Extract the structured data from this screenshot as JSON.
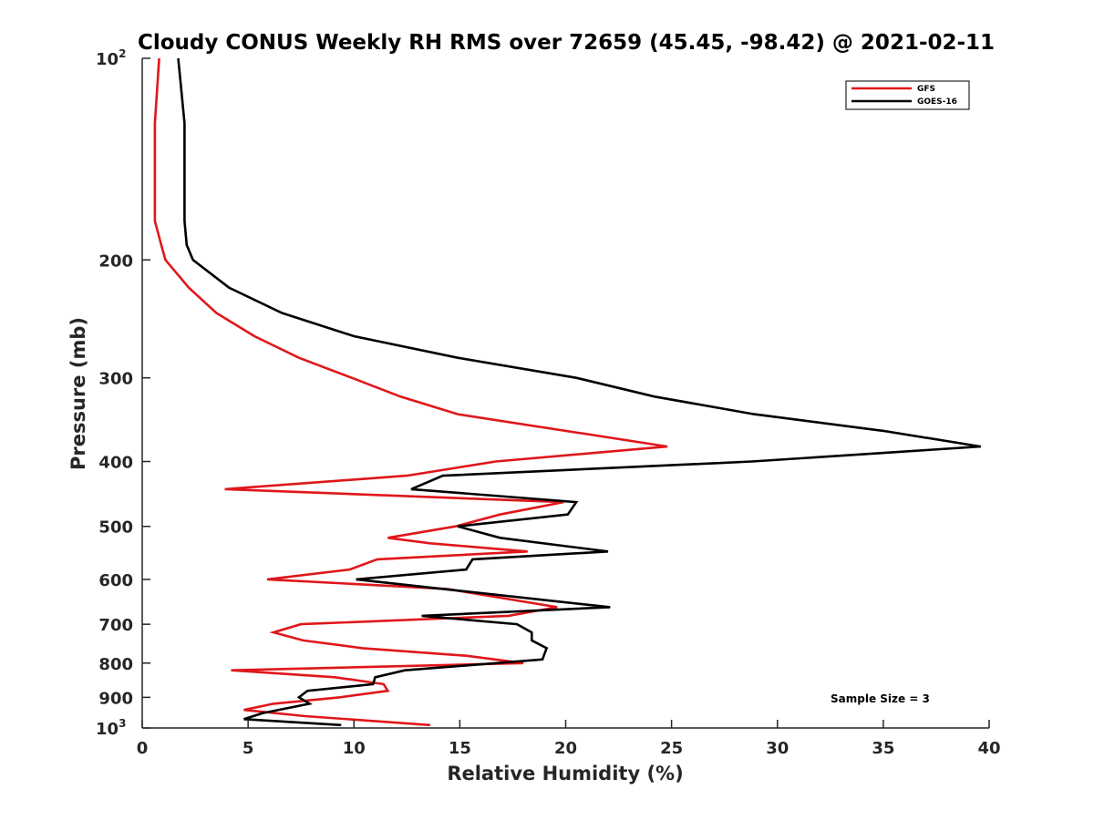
{
  "chart_data": {
    "type": "line",
    "title": "Cloudy CONUS Weekly RH RMS over 72659 (45.45, -98.42) @ 2021-02-11",
    "xlabel": "Relative Humidity (%)",
    "ylabel": "Pressure (mb)",
    "xlim": [
      0,
      40
    ],
    "ylim": [
      100,
      1000
    ],
    "y_scale": "log",
    "y_reversed": true,
    "grid": false,
    "legend_position": "top-right",
    "x_ticks": [
      0,
      5,
      10,
      15,
      20,
      25,
      30,
      35,
      40
    ],
    "x_tick_labels": [
      "0",
      "5",
      "10",
      "15",
      "20",
      "25",
      "30",
      "35",
      "40"
    ],
    "y_ticks": [
      {
        "value": 100,
        "label": "10",
        "exponent": "2"
      },
      {
        "value": 200,
        "label": "200"
      },
      {
        "value": 300,
        "label": "300"
      },
      {
        "value": 400,
        "label": "400"
      },
      {
        "value": 500,
        "label": "500"
      },
      {
        "value": 600,
        "label": "600"
      },
      {
        "value": 700,
        "label": "700"
      },
      {
        "value": 800,
        "label": "800"
      },
      {
        "value": 900,
        "label": "900"
      },
      {
        "value": 1000,
        "label": "10",
        "exponent": "3"
      }
    ],
    "series": [
      {
        "name": "GFS",
        "color": "#e0171b",
        "points": [
          [
            0.8,
            100
          ],
          [
            0.6,
            125
          ],
          [
            0.6,
            150
          ],
          [
            0.6,
            175
          ],
          [
            0.9,
            190
          ],
          [
            1.1,
            200
          ],
          [
            2.2,
            220
          ],
          [
            3.5,
            240
          ],
          [
            5.3,
            260
          ],
          [
            7.4,
            280
          ],
          [
            9.9,
            300
          ],
          [
            12.2,
            320
          ],
          [
            14.9,
            340
          ],
          [
            24.8,
            380
          ],
          [
            16.7,
            400
          ],
          [
            12.5,
            420
          ],
          [
            3.9,
            440
          ],
          [
            19.9,
            460
          ],
          [
            16.9,
            480
          ],
          [
            14.8,
            500
          ],
          [
            11.6,
            520
          ],
          [
            13.6,
            530
          ],
          [
            18.2,
            545
          ],
          [
            11.1,
            560
          ],
          [
            9.8,
            580
          ],
          [
            5.9,
            600
          ],
          [
            14.4,
            620
          ],
          [
            19.6,
            660
          ],
          [
            17.3,
            680
          ],
          [
            7.5,
            700
          ],
          [
            6.2,
            720
          ],
          [
            7.6,
            740
          ],
          [
            10.4,
            760
          ],
          [
            15.3,
            780
          ],
          [
            18.0,
            800
          ],
          [
            4.2,
            820
          ],
          [
            9.1,
            840
          ],
          [
            11.4,
            860
          ],
          [
            11.6,
            880
          ],
          [
            9.3,
            900
          ],
          [
            6.2,
            920
          ],
          [
            4.8,
            940
          ],
          [
            7.7,
            960
          ],
          [
            13.6,
            990
          ]
        ]
      },
      {
        "name": "GOES-16",
        "color": "#000000",
        "points": [
          [
            1.7,
            100
          ],
          [
            2.0,
            125
          ],
          [
            2.0,
            150
          ],
          [
            2.0,
            175
          ],
          [
            2.1,
            190
          ],
          [
            2.4,
            200
          ],
          [
            4.1,
            220
          ],
          [
            6.6,
            240
          ],
          [
            10.0,
            260
          ],
          [
            14.9,
            280
          ],
          [
            20.5,
            300
          ],
          [
            24.2,
            320
          ],
          [
            28.9,
            340
          ],
          [
            35.0,
            360
          ],
          [
            39.6,
            380
          ],
          [
            28.8,
            400
          ],
          [
            14.2,
            420
          ],
          [
            12.7,
            440
          ],
          [
            20.5,
            460
          ],
          [
            20.1,
            480
          ],
          [
            14.9,
            500
          ],
          [
            16.9,
            520
          ],
          [
            22.0,
            545
          ],
          [
            15.6,
            560
          ],
          [
            15.3,
            580
          ],
          [
            10.1,
            600
          ],
          [
            14.2,
            620
          ],
          [
            22.1,
            660
          ],
          [
            13.2,
            680
          ],
          [
            17.7,
            700
          ],
          [
            18.4,
            720
          ],
          [
            18.4,
            740
          ],
          [
            19.1,
            760
          ],
          [
            18.9,
            790
          ],
          [
            12.4,
            820
          ],
          [
            11.0,
            840
          ],
          [
            10.9,
            860
          ],
          [
            7.8,
            880
          ],
          [
            7.4,
            900
          ],
          [
            7.9,
            920
          ],
          [
            5.7,
            950
          ],
          [
            4.8,
            970
          ],
          [
            9.4,
            990
          ]
        ]
      }
    ],
    "annotations": [
      "Sample Size = 3"
    ]
  }
}
